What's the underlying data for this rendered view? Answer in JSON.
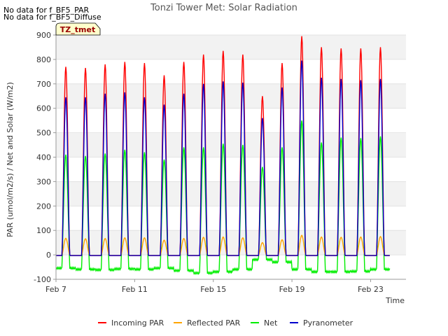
{
  "notes": [
    "No data for f_BF5_PAR",
    "No data for f_BF5_Diffuse"
  ],
  "chart_data": {
    "type": "line",
    "title": "Tonzi Tower Met: Solar Radiation",
    "xlabel": "Time",
    "ylabel": "PAR (umol/m2/s) / Net and Solar (W/m2)",
    "ylim": [
      -100,
      900
    ],
    "xlim": [
      7,
      24.8
    ],
    "yticks": [
      -100,
      0,
      100,
      200,
      300,
      400,
      500,
      600,
      700,
      800,
      900
    ],
    "xticks": [
      {
        "value": 7,
        "label": "Feb 7"
      },
      {
        "value": 11,
        "label": "Feb 11"
      },
      {
        "value": 15,
        "label": "Feb 15"
      },
      {
        "value": 19,
        "label": "Feb 19"
      },
      {
        "value": 23,
        "label": "Feb 23"
      }
    ],
    "legend_position": "bottom",
    "annotation": "TZ_tmet",
    "day_start": 7,
    "series": [
      {
        "name": "Incoming PAR",
        "color": "#ff0000",
        "daily_peaks": [
          770,
          765,
          780,
          790,
          785,
          735,
          790,
          820,
          835,
          820,
          650,
          785,
          895,
          850,
          845,
          845,
          850
        ]
      },
      {
        "name": "Reflected PAR",
        "color": "#ffa500",
        "daily_peaks": [
          68,
          66,
          67,
          70,
          70,
          60,
          67,
          72,
          73,
          70,
          50,
          62,
          80,
          73,
          72,
          73,
          75
        ]
      },
      {
        "name": "Net",
        "color": "#00ee00",
        "daily_peaks": [
          410,
          405,
          415,
          430,
          420,
          390,
          440,
          440,
          455,
          450,
          360,
          440,
          550,
          460,
          480,
          478,
          485
        ],
        "night_values": [
          -55,
          -60,
          -62,
          -58,
          -60,
          -55,
          -65,
          -75,
          -70,
          -60,
          -20,
          -30,
          -60,
          -70,
          -70,
          -68,
          -60
        ]
      },
      {
        "name": "Pyranometer",
        "color": "#0000cc",
        "daily_peaks": [
          645,
          645,
          660,
          665,
          645,
          615,
          660,
          700,
          710,
          705,
          560,
          685,
          795,
          725,
          720,
          715,
          720
        ]
      }
    ]
  }
}
